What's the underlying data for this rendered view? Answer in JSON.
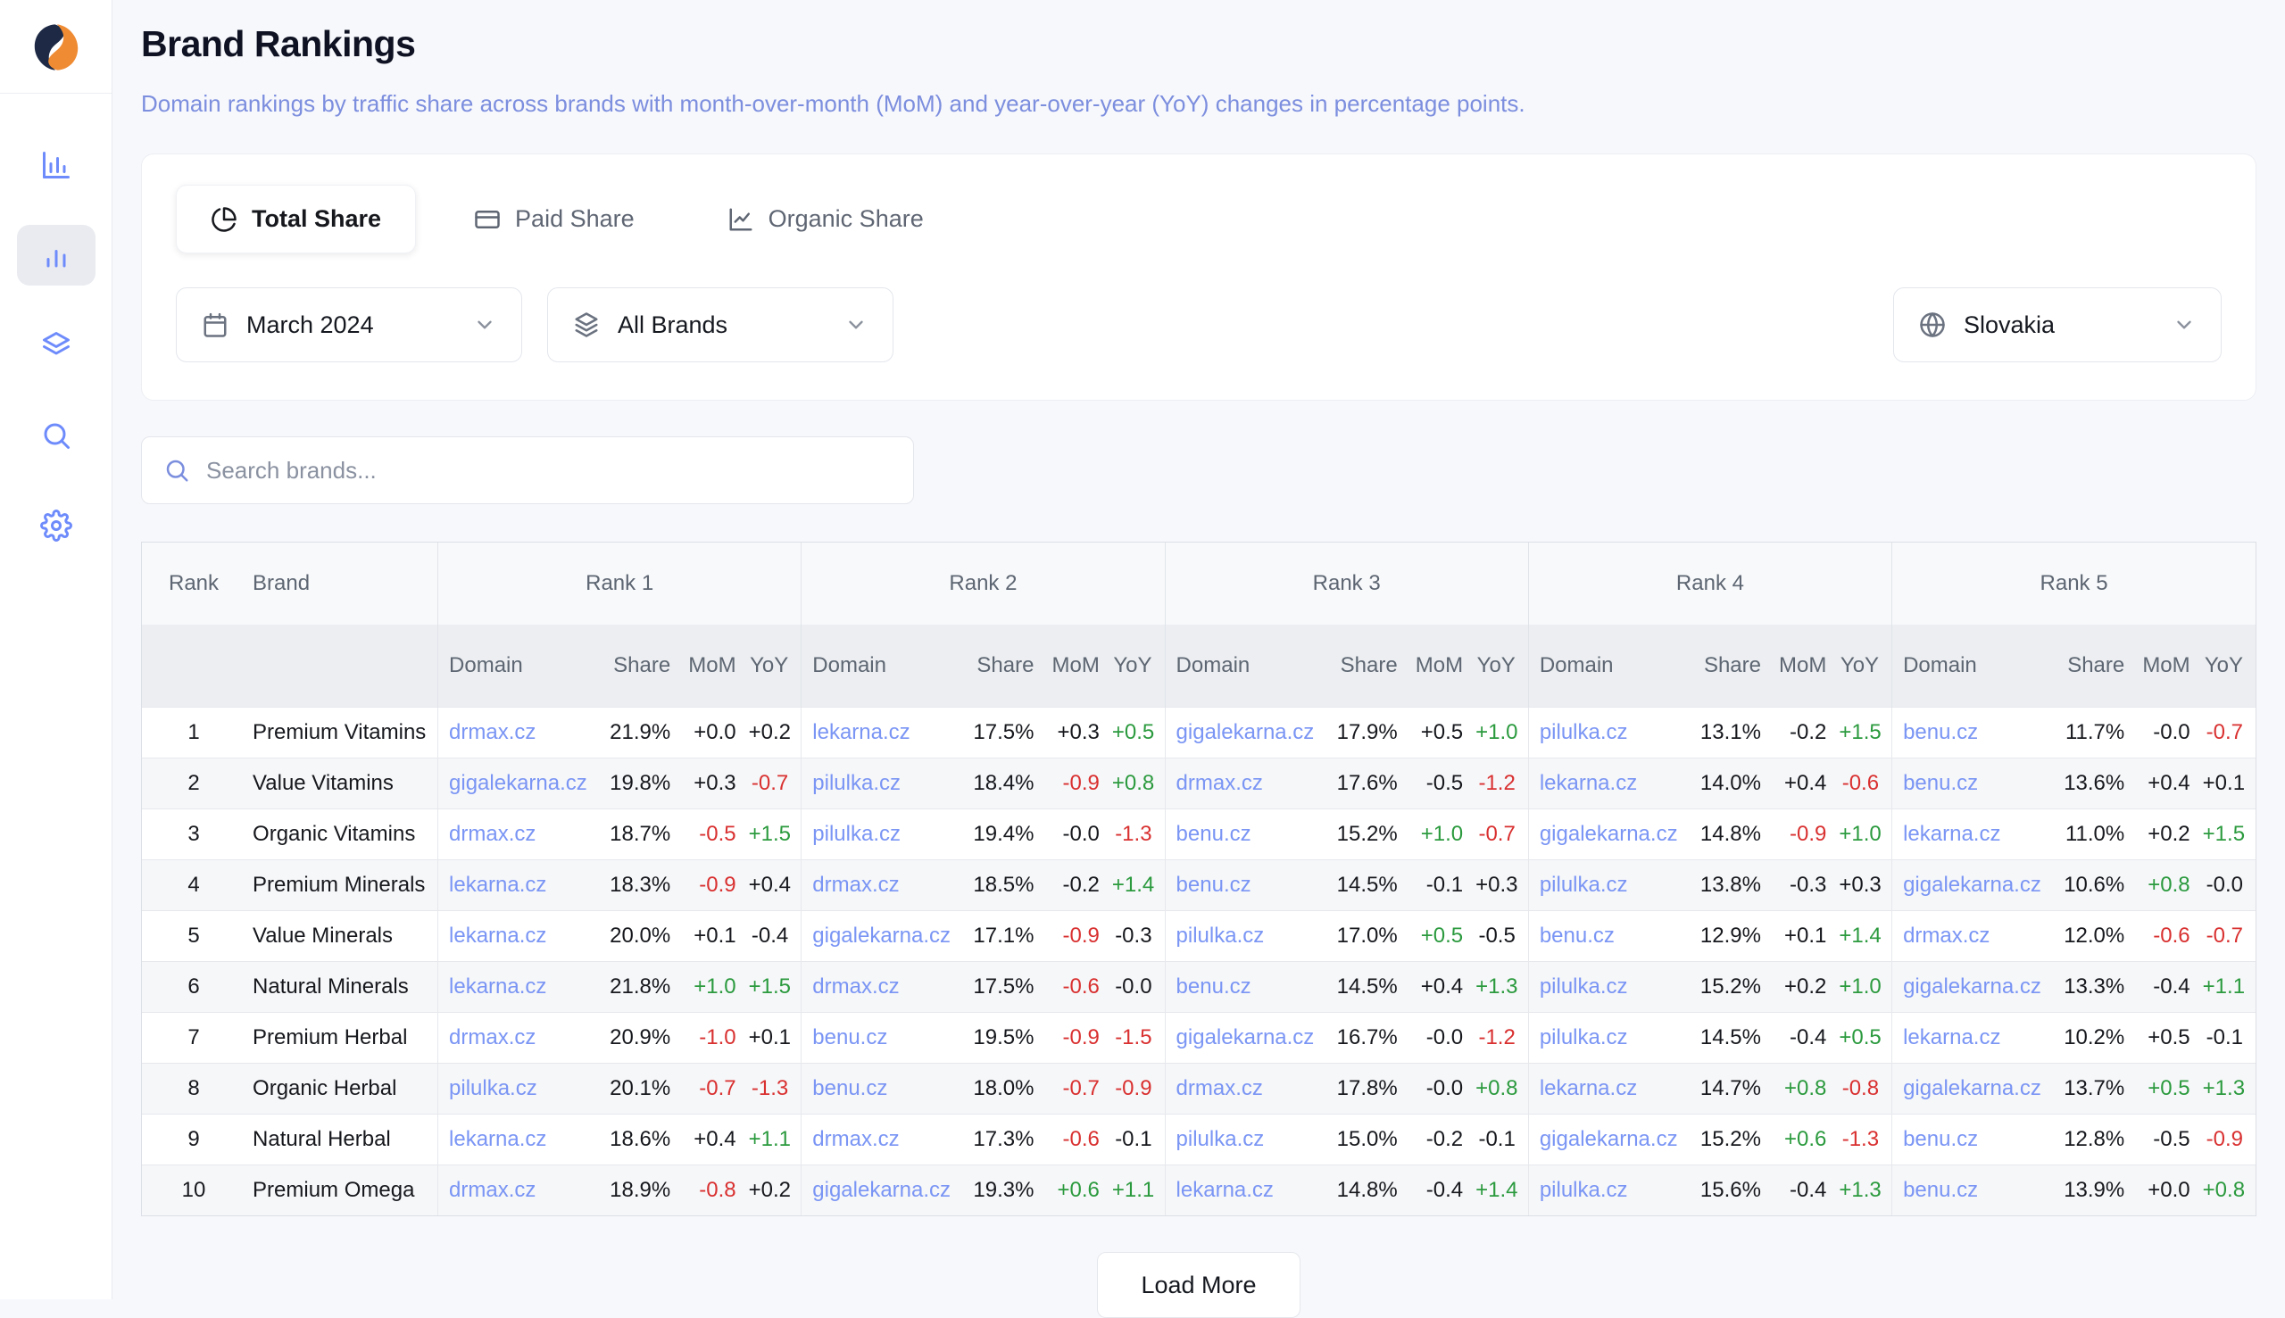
{
  "page": {
    "title": "Brand Rankings",
    "subtitle": "Domain rankings by traffic share across brands with month-over-month (MoM) and year-over-year (YoY) changes in percentage points."
  },
  "sidebar": {
    "logo_icon": "brand-logo-swirl",
    "items": [
      {
        "icon": "bar-chart-axis-icon",
        "active": false
      },
      {
        "icon": "bar-chart-icon",
        "active": true
      },
      {
        "icon": "layers-icon",
        "active": false
      },
      {
        "icon": "search-icon",
        "active": false
      },
      {
        "icon": "gear-icon",
        "active": false
      }
    ]
  },
  "tabs": [
    {
      "label": "Total Share",
      "icon": "pie-chart-icon",
      "active": true
    },
    {
      "label": "Paid Share",
      "icon": "credit-card-icon",
      "active": false
    },
    {
      "label": "Organic Share",
      "icon": "line-chart-icon",
      "active": false
    }
  ],
  "filters": {
    "month": {
      "value": "March 2024",
      "icon": "calendar-icon"
    },
    "brand": {
      "value": "All Brands",
      "icon": "layers-icon"
    },
    "country": {
      "value": "Slovakia",
      "icon": "globe-icon"
    }
  },
  "search": {
    "placeholder": "Search brands...",
    "icon": "search-icon",
    "value": ""
  },
  "table": {
    "rank_header": "Rank",
    "brand_header": "Brand",
    "group_headers": [
      "Rank 1",
      "Rank 2",
      "Rank 3",
      "Rank 4",
      "Rank 5"
    ],
    "sub_headers": [
      "Domain",
      "Share",
      "MoM",
      "YoY"
    ],
    "rows": [
      {
        "rank": "1",
        "brand": "Premium Vitamins",
        "cells": [
          {
            "domain": "drmax.cz",
            "share": "21.9%",
            "mom": "+0.0",
            "mom_color": "neutral",
            "yoy": "+0.2",
            "yoy_color": "neutral"
          },
          {
            "domain": "lekarna.cz",
            "share": "17.5%",
            "mom": "+0.3",
            "mom_color": "neutral",
            "yoy": "+0.5",
            "yoy_color": "positive"
          },
          {
            "domain": "gigalekarna.cz",
            "share": "17.9%",
            "mom": "+0.5",
            "mom_color": "neutral",
            "yoy": "+1.0",
            "yoy_color": "positive"
          },
          {
            "domain": "pilulka.cz",
            "share": "13.1%",
            "mom": "-0.2",
            "mom_color": "neutral",
            "yoy": "+1.5",
            "yoy_color": "positive"
          },
          {
            "domain": "benu.cz",
            "share": "11.7%",
            "mom": "-0.0",
            "mom_color": "neutral",
            "yoy": "-0.7",
            "yoy_color": "negative"
          }
        ]
      },
      {
        "rank": "2",
        "brand": "Value Vitamins",
        "cells": [
          {
            "domain": "gigalekarna.cz",
            "share": "19.8%",
            "mom": "+0.3",
            "mom_color": "neutral",
            "yoy": "-0.7",
            "yoy_color": "negative"
          },
          {
            "domain": "pilulka.cz",
            "share": "18.4%",
            "mom": "-0.9",
            "mom_color": "negative",
            "yoy": "+0.8",
            "yoy_color": "positive"
          },
          {
            "domain": "drmax.cz",
            "share": "17.6%",
            "mom": "-0.5",
            "mom_color": "neutral",
            "yoy": "-1.2",
            "yoy_color": "negative"
          },
          {
            "domain": "lekarna.cz",
            "share": "14.0%",
            "mom": "+0.4",
            "mom_color": "neutral",
            "yoy": "-0.6",
            "yoy_color": "negative"
          },
          {
            "domain": "benu.cz",
            "share": "13.6%",
            "mom": "+0.4",
            "mom_color": "neutral",
            "yoy": "+0.1",
            "yoy_color": "neutral"
          }
        ]
      },
      {
        "rank": "3",
        "brand": "Organic Vitamins",
        "cells": [
          {
            "domain": "drmax.cz",
            "share": "18.7%",
            "mom": "-0.5",
            "mom_color": "negative",
            "yoy": "+1.5",
            "yoy_color": "positive"
          },
          {
            "domain": "pilulka.cz",
            "share": "19.4%",
            "mom": "-0.0",
            "mom_color": "neutral",
            "yoy": "-1.3",
            "yoy_color": "negative"
          },
          {
            "domain": "benu.cz",
            "share": "15.2%",
            "mom": "+1.0",
            "mom_color": "positive",
            "yoy": "-0.7",
            "yoy_color": "negative"
          },
          {
            "domain": "gigalekarna.cz",
            "share": "14.8%",
            "mom": "-0.9",
            "mom_color": "negative",
            "yoy": "+1.0",
            "yoy_color": "positive"
          },
          {
            "domain": "lekarna.cz",
            "share": "11.0%",
            "mom": "+0.2",
            "mom_color": "neutral",
            "yoy": "+1.5",
            "yoy_color": "positive"
          }
        ]
      },
      {
        "rank": "4",
        "brand": "Premium Minerals",
        "cells": [
          {
            "domain": "lekarna.cz",
            "share": "18.3%",
            "mom": "-0.9",
            "mom_color": "negative",
            "yoy": "+0.4",
            "yoy_color": "neutral"
          },
          {
            "domain": "drmax.cz",
            "share": "18.5%",
            "mom": "-0.2",
            "mom_color": "neutral",
            "yoy": "+1.4",
            "yoy_color": "positive"
          },
          {
            "domain": "benu.cz",
            "share": "14.5%",
            "mom": "-0.1",
            "mom_color": "neutral",
            "yoy": "+0.3",
            "yoy_color": "neutral"
          },
          {
            "domain": "pilulka.cz",
            "share": "13.8%",
            "mom": "-0.3",
            "mom_color": "neutral",
            "yoy": "+0.3",
            "yoy_color": "neutral"
          },
          {
            "domain": "gigalekarna.cz",
            "share": "10.6%",
            "mom": "+0.8",
            "mom_color": "positive",
            "yoy": "-0.0",
            "yoy_color": "neutral"
          }
        ]
      },
      {
        "rank": "5",
        "brand": "Value Minerals",
        "cells": [
          {
            "domain": "lekarna.cz",
            "share": "20.0%",
            "mom": "+0.1",
            "mom_color": "neutral",
            "yoy": "-0.4",
            "yoy_color": "neutral"
          },
          {
            "domain": "gigalekarna.cz",
            "share": "17.1%",
            "mom": "-0.9",
            "mom_color": "negative",
            "yoy": "-0.3",
            "yoy_color": "neutral"
          },
          {
            "domain": "pilulka.cz",
            "share": "17.0%",
            "mom": "+0.5",
            "mom_color": "positive",
            "yoy": "-0.5",
            "yoy_color": "neutral"
          },
          {
            "domain": "benu.cz",
            "share": "12.9%",
            "mom": "+0.1",
            "mom_color": "neutral",
            "yoy": "+1.4",
            "yoy_color": "positive"
          },
          {
            "domain": "drmax.cz",
            "share": "12.0%",
            "mom": "-0.6",
            "mom_color": "negative",
            "yoy": "-0.7",
            "yoy_color": "negative"
          }
        ]
      },
      {
        "rank": "6",
        "brand": "Natural Minerals",
        "cells": [
          {
            "domain": "lekarna.cz",
            "share": "21.8%",
            "mom": "+1.0",
            "mom_color": "positive",
            "yoy": "+1.5",
            "yoy_color": "positive"
          },
          {
            "domain": "drmax.cz",
            "share": "17.5%",
            "mom": "-0.6",
            "mom_color": "negative",
            "yoy": "-0.0",
            "yoy_color": "neutral"
          },
          {
            "domain": "benu.cz",
            "share": "14.5%",
            "mom": "+0.4",
            "mom_color": "neutral",
            "yoy": "+1.3",
            "yoy_color": "positive"
          },
          {
            "domain": "pilulka.cz",
            "share": "15.2%",
            "mom": "+0.2",
            "mom_color": "neutral",
            "yoy": "+1.0",
            "yoy_color": "positive"
          },
          {
            "domain": "gigalekarna.cz",
            "share": "13.3%",
            "mom": "-0.4",
            "mom_color": "neutral",
            "yoy": "+1.1",
            "yoy_color": "positive"
          }
        ]
      },
      {
        "rank": "7",
        "brand": "Premium Herbal",
        "cells": [
          {
            "domain": "drmax.cz",
            "share": "20.9%",
            "mom": "-1.0",
            "mom_color": "negative",
            "yoy": "+0.1",
            "yoy_color": "neutral"
          },
          {
            "domain": "benu.cz",
            "share": "19.5%",
            "mom": "-0.9",
            "mom_color": "negative",
            "yoy": "-1.5",
            "yoy_color": "negative"
          },
          {
            "domain": "gigalekarna.cz",
            "share": "16.7%",
            "mom": "-0.0",
            "mom_color": "neutral",
            "yoy": "-1.2",
            "yoy_color": "negative"
          },
          {
            "domain": "pilulka.cz",
            "share": "14.5%",
            "mom": "-0.4",
            "mom_color": "neutral",
            "yoy": "+0.5",
            "yoy_color": "positive"
          },
          {
            "domain": "lekarna.cz",
            "share": "10.2%",
            "mom": "+0.5",
            "mom_color": "neutral",
            "yoy": "-0.1",
            "yoy_color": "neutral"
          }
        ]
      },
      {
        "rank": "8",
        "brand": "Organic Herbal",
        "cells": [
          {
            "domain": "pilulka.cz",
            "share": "20.1%",
            "mom": "-0.7",
            "mom_color": "negative",
            "yoy": "-1.3",
            "yoy_color": "negative"
          },
          {
            "domain": "benu.cz",
            "share": "18.0%",
            "mom": "-0.7",
            "mom_color": "negative",
            "yoy": "-0.9",
            "yoy_color": "negative"
          },
          {
            "domain": "drmax.cz",
            "share": "17.8%",
            "mom": "-0.0",
            "mom_color": "neutral",
            "yoy": "+0.8",
            "yoy_color": "positive"
          },
          {
            "domain": "lekarna.cz",
            "share": "14.7%",
            "mom": "+0.8",
            "mom_color": "positive",
            "yoy": "-0.8",
            "yoy_color": "negative"
          },
          {
            "domain": "gigalekarna.cz",
            "share": "13.7%",
            "mom": "+0.5",
            "mom_color": "positive",
            "yoy": "+1.3",
            "yoy_color": "positive"
          }
        ]
      },
      {
        "rank": "9",
        "brand": "Natural Herbal",
        "cells": [
          {
            "domain": "lekarna.cz",
            "share": "18.6%",
            "mom": "+0.4",
            "mom_color": "neutral",
            "yoy": "+1.1",
            "yoy_color": "positive"
          },
          {
            "domain": "drmax.cz",
            "share": "17.3%",
            "mom": "-0.6",
            "mom_color": "negative",
            "yoy": "-0.1",
            "yoy_color": "neutral"
          },
          {
            "domain": "pilulka.cz",
            "share": "15.0%",
            "mom": "-0.2",
            "mom_color": "neutral",
            "yoy": "-0.1",
            "yoy_color": "neutral"
          },
          {
            "domain": "gigalekarna.cz",
            "share": "15.2%",
            "mom": "+0.6",
            "mom_color": "positive",
            "yoy": "-1.3",
            "yoy_color": "negative"
          },
          {
            "domain": "benu.cz",
            "share": "12.8%",
            "mom": "-0.5",
            "mom_color": "neutral",
            "yoy": "-0.9",
            "yoy_color": "negative"
          }
        ]
      },
      {
        "rank": "10",
        "brand": "Premium Omega",
        "cells": [
          {
            "domain": "drmax.cz",
            "share": "18.9%",
            "mom": "-0.8",
            "mom_color": "negative",
            "yoy": "+0.2",
            "yoy_color": "neutral"
          },
          {
            "domain": "gigalekarna.cz",
            "share": "19.3%",
            "mom": "+0.6",
            "mom_color": "positive",
            "yoy": "+1.1",
            "yoy_color": "positive"
          },
          {
            "domain": "lekarna.cz",
            "share": "14.8%",
            "mom": "-0.4",
            "mom_color": "neutral",
            "yoy": "+1.4",
            "yoy_color": "positive"
          },
          {
            "domain": "pilulka.cz",
            "share": "15.6%",
            "mom": "-0.4",
            "mom_color": "neutral",
            "yoy": "+1.3",
            "yoy_color": "positive"
          },
          {
            "domain": "benu.cz",
            "share": "13.9%",
            "mom": "+0.0",
            "mom_color": "neutral",
            "yoy": "+0.8",
            "yoy_color": "positive"
          }
        ]
      }
    ]
  },
  "load_more_label": "Load More",
  "colors": {
    "accent_blue": "#6e8bfb",
    "subtitle_blue": "#7c8ede",
    "link_blue": "#7a95f4",
    "positive_green": "#2b9a3e",
    "negative_red": "#d93030",
    "logo_navy": "#1e2a45",
    "logo_orange": "#ef8b33"
  }
}
